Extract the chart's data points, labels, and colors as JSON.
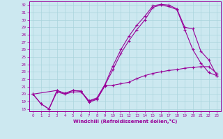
{
  "xlabel": "Windchill (Refroidissement éolien,°C)",
  "bg_color": "#cce8f0",
  "line_color": "#990099",
  "grid_color": "#aad4dd",
  "xlim": [
    -0.5,
    23.5
  ],
  "ylim": [
    17.7,
    32.5
  ],
  "yticks": [
    18,
    19,
    20,
    21,
    22,
    23,
    24,
    25,
    26,
    27,
    28,
    29,
    30,
    31,
    32
  ],
  "xticks": [
    0,
    1,
    2,
    3,
    4,
    5,
    6,
    7,
    8,
    9,
    10,
    11,
    12,
    13,
    14,
    15,
    16,
    17,
    18,
    19,
    20,
    21,
    22,
    23
  ],
  "line1_x": [
    0,
    1,
    2,
    3,
    4,
    5,
    6,
    7,
    8,
    9,
    10,
    11,
    12,
    13,
    14,
    15,
    16,
    17,
    18,
    19,
    20,
    21,
    22,
    23
  ],
  "line1_y": [
    20.0,
    18.7,
    18.0,
    20.3,
    20.0,
    20.3,
    20.3,
    19.1,
    19.3,
    21.1,
    21.2,
    21.4,
    21.6,
    22.1,
    22.5,
    22.8,
    23.0,
    23.2,
    23.3,
    23.5,
    23.6,
    23.7,
    23.7,
    22.8
  ],
  "line2_x": [
    0,
    1,
    2,
    3,
    4,
    5,
    6,
    7,
    8,
    9,
    10,
    11,
    12,
    13,
    14,
    15,
    16,
    17,
    18,
    19,
    20,
    21,
    22,
    23
  ],
  "line2_y": [
    20.0,
    18.7,
    18.0,
    20.5,
    20.1,
    20.5,
    20.4,
    18.9,
    19.3,
    21.2,
    23.3,
    25.5,
    27.2,
    28.7,
    30.0,
    31.7,
    32.0,
    31.8,
    31.4,
    28.7,
    26.0,
    24.2,
    22.9,
    22.5
  ],
  "line3_x": [
    0,
    3,
    4,
    5,
    6,
    7,
    8,
    9,
    10,
    11,
    12,
    13,
    14,
    15,
    16,
    17,
    18,
    19,
    20,
    21,
    22,
    23
  ],
  "line3_y": [
    20.0,
    20.5,
    20.1,
    20.5,
    20.4,
    19.1,
    19.5,
    21.3,
    23.8,
    26.0,
    27.8,
    29.3,
    30.5,
    31.9,
    32.1,
    32.0,
    31.5,
    29.0,
    28.8,
    25.8,
    24.6,
    22.5
  ]
}
